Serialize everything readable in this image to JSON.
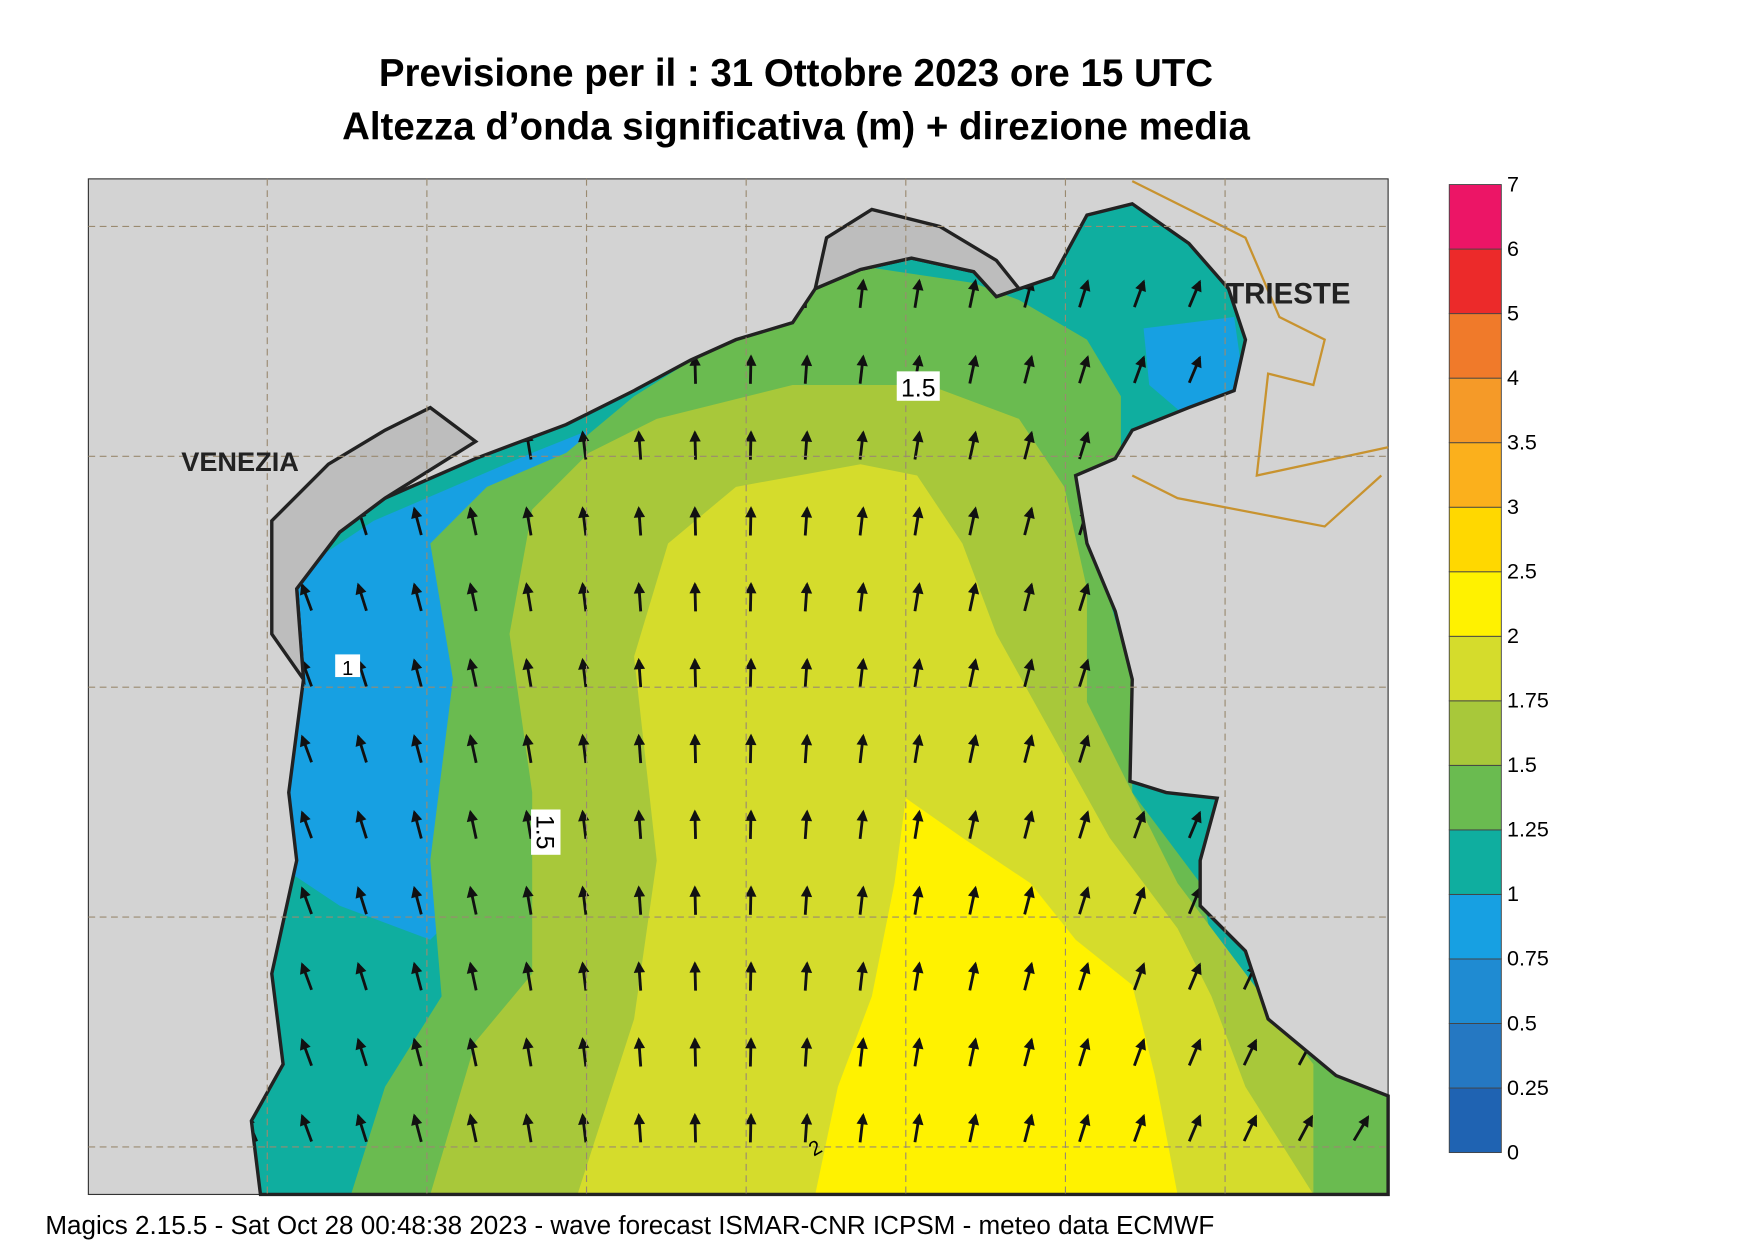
{
  "header": {
    "title": "Previsione per il  :  31  Ottobre  2023   ore 15 UTC",
    "subtitle": "Altezza d’onda significativa (m) + direzione media"
  },
  "map": {
    "cities": [
      "VENEZIA",
      "TRIESTE"
    ],
    "contour_labels": [
      "1.5",
      "1.5",
      "1",
      "2"
    ]
  },
  "colorbar": {
    "levels": [
      0,
      0.25,
      0.5,
      0.75,
      1,
      1.25,
      1.5,
      1.75,
      2,
      2.5,
      3,
      3.5,
      4,
      5,
      6,
      7
    ],
    "colors": [
      "#1f63b2",
      "#2578c2",
      "#1f8bd2",
      "#17a0e2",
      "#0fae9f",
      "#6abb50",
      "#a8c83a",
      "#d5dc2c",
      "#fff200",
      "#ffd800",
      "#fbb01c",
      "#f59a28",
      "#f07a2a",
      "#ec2a2a",
      "#ec1566"
    ]
  },
  "footer": "Magics 2.15.5 - Sat Oct 28 00:48:38 2023 - wave forecast  ISMAR-CNR  ICPSM - meteo data   ECMWF"
}
